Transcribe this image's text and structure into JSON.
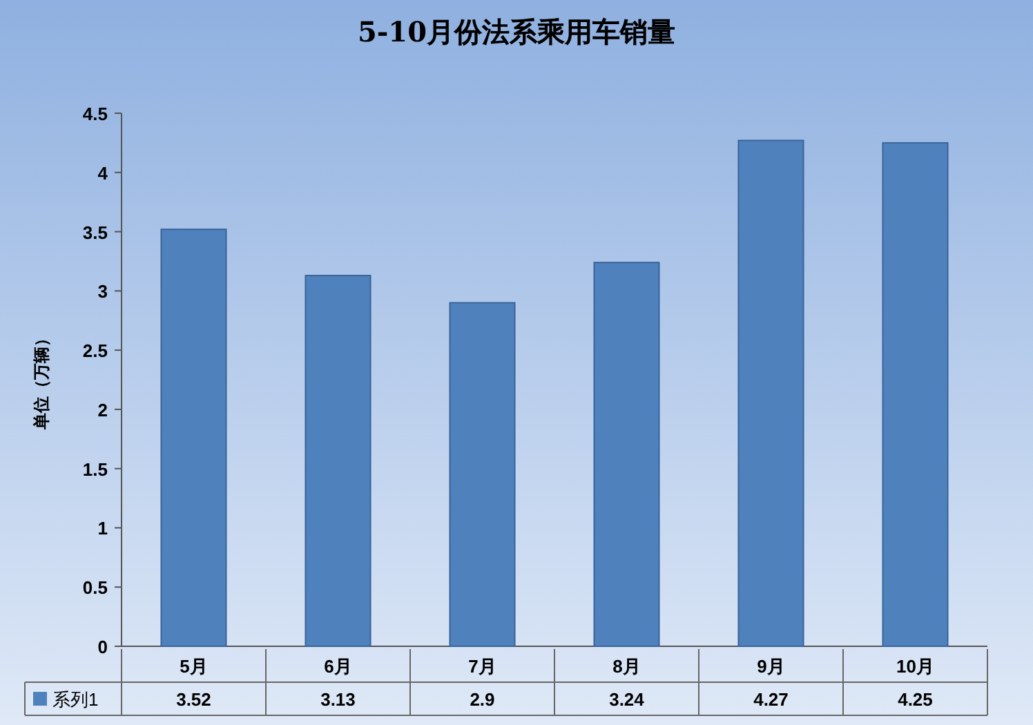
{
  "chart_data": {
    "type": "bar",
    "title": "5-10月份法系乘用车销量",
    "ylabel": "单位（万辆）",
    "categories": [
      "5月",
      "6月",
      "7月",
      "8月",
      "9月",
      "10月"
    ],
    "series": [
      {
        "name": "系列1",
        "color": "#4f81bd",
        "values": [
          3.52,
          3.13,
          2.9,
          3.24,
          4.27,
          4.25
        ]
      }
    ],
    "ylim": [
      0,
      4.5
    ],
    "yticks": [
      0,
      0.5,
      1,
      1.5,
      2,
      2.5,
      3,
      3.5,
      4,
      4.5
    ],
    "data_labels": true,
    "legend": "bottom"
  }
}
